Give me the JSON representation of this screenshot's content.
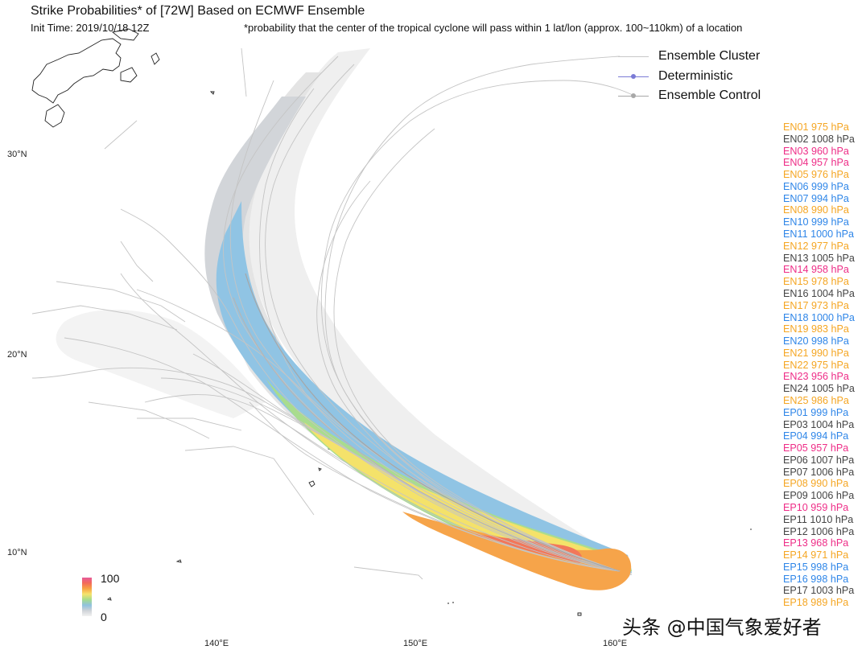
{
  "header": {
    "title": "Strike Probabilities* of [72W] Based on ECMWF Ensemble",
    "init_time": "Init Time: 2019/10/18 12Z",
    "footnote": "*probability that the center of the tropical cyclone will pass within 1 lat/lon (approx. 100~110km) of a location"
  },
  "legend": {
    "items": [
      {
        "label": "Ensemble Cluster",
        "color": "#c8c8c8",
        "marker": false
      },
      {
        "label": "Deterministic",
        "color": "#7b7bd6",
        "marker": true
      },
      {
        "label": "Ensemble Control",
        "color": "#a8a8a8",
        "marker": true
      }
    ]
  },
  "axes": {
    "lat_labels": [
      "30°N",
      "20°N",
      "10°N"
    ],
    "lon_labels": [
      "140°E",
      "150°E",
      "160°E"
    ]
  },
  "colorbar": {
    "max": "100",
    "min": "0"
  },
  "colors": {
    "orange": "#f5a623",
    "gray": "#444444",
    "pink": "#ee2d87",
    "blue": "#2f86e8"
  },
  "members": [
    {
      "label": "EN01 975 hPa",
      "color": "orange"
    },
    {
      "label": "EN02 1008 hPa",
      "color": "gray"
    },
    {
      "label": "EN03 960 hPa",
      "color": "pink"
    },
    {
      "label": "EN04 957 hPa",
      "color": "pink"
    },
    {
      "label": "EN05 976 hPa",
      "color": "orange"
    },
    {
      "label": "EN06 999 hPa",
      "color": "blue"
    },
    {
      "label": "EN07 994 hPa",
      "color": "blue"
    },
    {
      "label": "EN08 990 hPa",
      "color": "orange"
    },
    {
      "label": "EN10 999 hPa",
      "color": "blue"
    },
    {
      "label": "EN11 1000 hPa",
      "color": "blue"
    },
    {
      "label": "EN12 977 hPa",
      "color": "orange"
    },
    {
      "label": "EN13 1005 hPa",
      "color": "gray"
    },
    {
      "label": "EN14 958 hPa",
      "color": "pink"
    },
    {
      "label": "EN15 978 hPa",
      "color": "orange"
    },
    {
      "label": "EN16 1004 hPa",
      "color": "gray"
    },
    {
      "label": "EN17 973 hPa",
      "color": "orange"
    },
    {
      "label": "EN18 1000 hPa",
      "color": "blue"
    },
    {
      "label": "EN19 983 hPa",
      "color": "orange"
    },
    {
      "label": "EN20 998 hPa",
      "color": "blue"
    },
    {
      "label": "EN21 990 hPa",
      "color": "orange"
    },
    {
      "label": "EN22 975 hPa",
      "color": "orange"
    },
    {
      "label": "EN23 956 hPa",
      "color": "pink"
    },
    {
      "label": "EN24 1005 hPa",
      "color": "gray"
    },
    {
      "label": "EN25 986 hPa",
      "color": "orange"
    },
    {
      "label": "EP01 999 hPa",
      "color": "blue"
    },
    {
      "label": "EP03 1004 hPa",
      "color": "gray"
    },
    {
      "label": "EP04 994 hPa",
      "color": "blue"
    },
    {
      "label": "EP05 957 hPa",
      "color": "pink"
    },
    {
      "label": "EP06 1007 hPa",
      "color": "gray"
    },
    {
      "label": "EP07 1006 hPa",
      "color": "gray"
    },
    {
      "label": "EP08 990 hPa",
      "color": "orange"
    },
    {
      "label": "EP09 1006 hPa",
      "color": "gray"
    },
    {
      "label": "EP10 959 hPa",
      "color": "pink"
    },
    {
      "label": "EP11 1010 hPa",
      "color": "gray"
    },
    {
      "label": "EP12 1006 hPa",
      "color": "gray"
    },
    {
      "label": "EP13 968 hPa",
      "color": "pink"
    },
    {
      "label": "EP14 971 hPa",
      "color": "orange"
    },
    {
      "label": "EP15 998 hPa",
      "color": "blue"
    },
    {
      "label": "EP16 998 hPa",
      "color": "blue"
    },
    {
      "label": "EP17 1003 hPa",
      "color": "gray"
    },
    {
      "label": "EP18 989 hPa",
      "color": "orange"
    }
  ],
  "watermark": "头条 @中国气象爱好者"
}
